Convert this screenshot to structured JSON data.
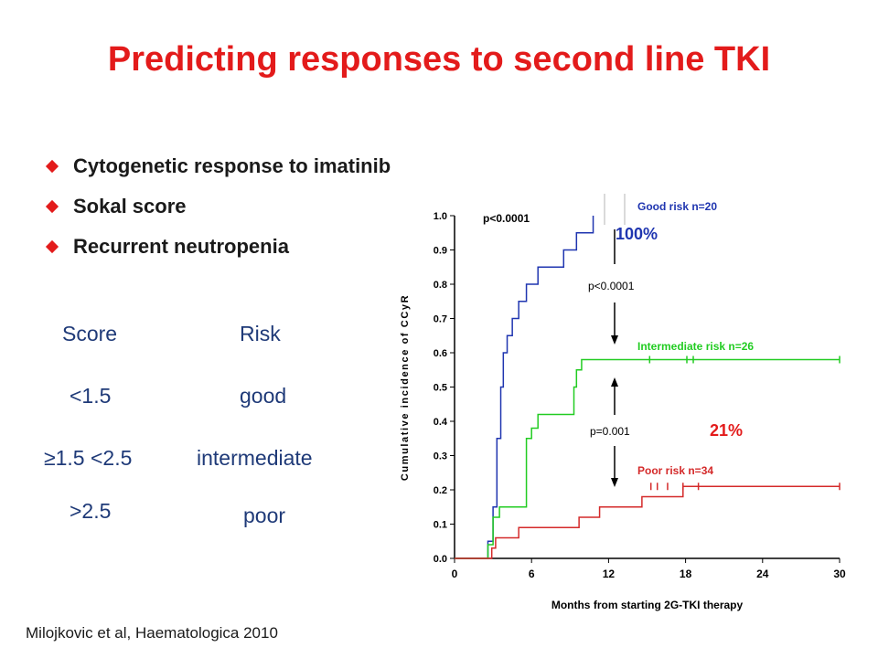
{
  "slide": {
    "title": "Predicting responses to second line TKI",
    "bullets": [
      "Cytogenetic response to imatinib",
      "Sokal score",
      "Recurrent neutropenia"
    ],
    "bullet_color": "#e31b1b",
    "table": {
      "headers": {
        "score": "Score",
        "risk": "Risk"
      },
      "rows": [
        {
          "score": "<1.5",
          "risk": "good"
        },
        {
          "score": "≥1.5 <2.5",
          "risk": "intermediate"
        },
        {
          "score": ">2.5",
          "risk": "poor"
        }
      ],
      "text_color": "#1f3a78"
    },
    "citation": "Milojkovic et al, Haematologica 2010"
  },
  "chart_data": {
    "type": "line",
    "step": true,
    "xlabel": "Months from starting 2G-TKI therapy",
    "ylabel": "Cumulative incidence of CCyR",
    "xlim": [
      0,
      30
    ],
    "ylim": [
      0,
      1.0
    ],
    "xticks": [
      "0",
      "6",
      "12",
      "18",
      "24",
      "30"
    ],
    "yticks": [
      "0.0",
      "0.1",
      "0.2",
      "0.3",
      "0.4",
      "0.5",
      "0.6",
      "0.7",
      "0.8",
      "0.9",
      "1.0"
    ],
    "series": [
      {
        "name": "Good risk n=20",
        "color": "#1f35b0",
        "x": [
          2.6,
          3.0,
          3.3,
          3.6,
          3.8,
          4.1,
          4.5,
          5.0,
          5.6,
          6.5,
          7.2,
          8.5,
          9.5,
          10.3,
          10.8
        ],
        "y": [
          0.05,
          0.15,
          0.35,
          0.5,
          0.6,
          0.65,
          0.7,
          0.75,
          0.8,
          0.85,
          0.85,
          0.9,
          0.95,
          0.95,
          1.0
        ],
        "censored": []
      },
      {
        "name": "Intermediate risk n=26",
        "color": "#22cc22",
        "x": [
          2.6,
          3.0,
          3.5,
          5.6,
          6.0,
          6.5,
          9.3,
          9.5,
          9.9
        ],
        "y": [
          0.04,
          0.12,
          0.15,
          0.35,
          0.38,
          0.42,
          0.5,
          0.55,
          0.58
        ],
        "censored": [
          15.2,
          18.1,
          18.6,
          30.0
        ]
      },
      {
        "name": "Poor risk n=34",
        "color": "#d42a2a",
        "x": [
          2.9,
          3.2,
          3.6,
          5.0,
          9.7,
          11.3,
          14.6,
          16.6,
          17.8
        ],
        "y": [
          0.03,
          0.06,
          0.06,
          0.09,
          0.12,
          0.15,
          0.18,
          0.18,
          0.21
        ],
        "censored": [
          15.3,
          15.8,
          16.6,
          17.8,
          19.0,
          30.0
        ]
      }
    ],
    "annotations": {
      "p_overall": "p<0.0001",
      "p_good_vs_intermediate": "p<0.0001",
      "p_intermediate_vs_poor": "p=0.001",
      "good_pct": "100%",
      "poor_pct": "21%"
    }
  }
}
